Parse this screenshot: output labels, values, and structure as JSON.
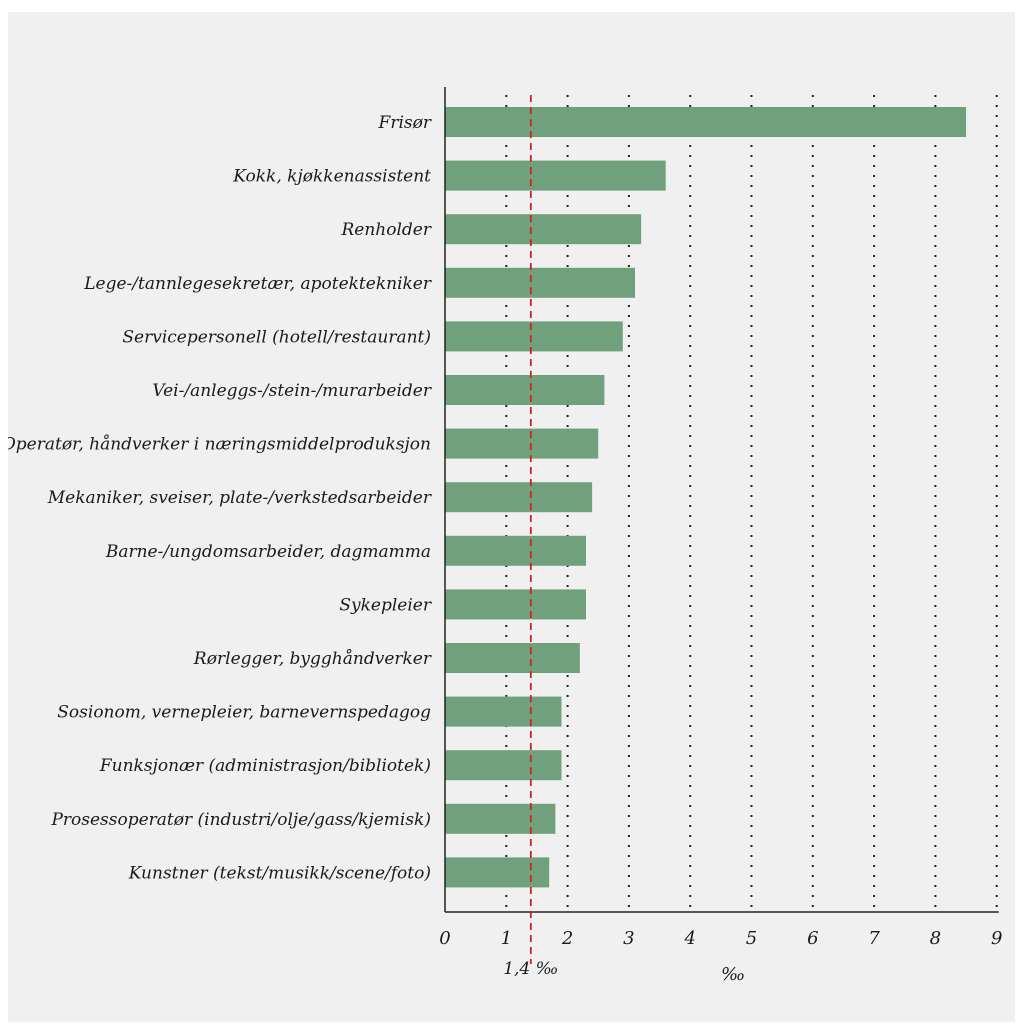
{
  "chart_data": {
    "type": "bar",
    "orientation": "horizontal",
    "categories": [
      "Frisør",
      "Kokk, kjøkkenassistent",
      "Renholder",
      "Lege-/tannlegesekretær, apotektekniker",
      "Servicepersonell (hotell/restaurant)",
      "Vei-/anleggs-/stein-/murarbeider",
      "Operatør, håndverker i næringsmiddelproduksjon",
      "Mekaniker, sveiser, plate-/verkstedsarbeider",
      "Barne-/ungdomsarbeider, dagmamma",
      "Sykepleier",
      "Rørlegger, bygghåndverker",
      "Sosionom, vernepleier, barnevernspedagog",
      "Funksjonær (administrasjon/bibliotek)",
      "Prosessoperatør (industri/olje/gass/kjemisk)",
      "Kunstner (tekst/musikk/scene/foto)"
    ],
    "values": [
      8.5,
      3.6,
      3.2,
      3.1,
      2.9,
      2.6,
      2.5,
      2.4,
      2.3,
      2.3,
      2.2,
      1.9,
      1.9,
      1.8,
      1.7
    ],
    "xlim": [
      0,
      9
    ],
    "xticks": [
      "0",
      "1",
      "2",
      "3",
      "4",
      "5",
      "6",
      "7",
      "8",
      "9"
    ],
    "xlabel": "‰",
    "grid": "vertical dotted",
    "reference_line": {
      "value": 1.4,
      "label": "1,4 ‰",
      "color": "#cc2222"
    },
    "bar_color": "#70a17c"
  }
}
